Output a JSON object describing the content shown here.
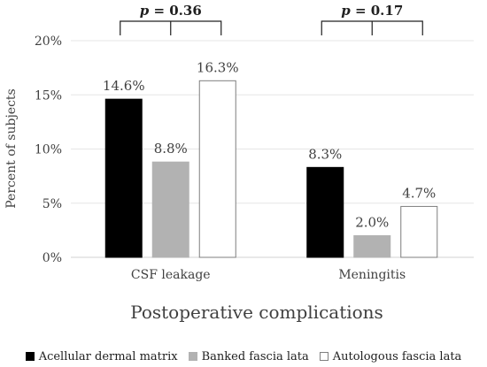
{
  "chart_data": {
    "type": "bar",
    "categories": [
      "CSF leakage",
      "Meningitis"
    ],
    "series": [
      {
        "name": "Acellular dermal matrix",
        "values": [
          14.6,
          8.3
        ],
        "labels": [
          "14.6%",
          "8.3%"
        ],
        "color": "#000000",
        "stroke": "#000000"
      },
      {
        "name": "Banked fascia lata",
        "values": [
          8.8,
          2.0
        ],
        "labels": [
          "8.8%",
          "2.0%"
        ],
        "color": "#b2b2b2",
        "stroke": "#b2b2b2"
      },
      {
        "name": "Autologous fascia lata",
        "values": [
          16.3,
          4.7
        ],
        "labels": [
          "16.3%",
          "4.7%"
        ],
        "color": "#ffffff",
        "stroke": "#7f7f7f"
      }
    ],
    "ylim": [
      0,
      20
    ],
    "yticks": [
      0,
      5,
      10,
      15,
      20
    ],
    "ytick_labels": [
      "0%",
      "5%",
      "10%",
      "15%",
      "20%"
    ],
    "ylabel": "Percent of subjects",
    "xlabel": "Postoperative complications",
    "annotations": [
      {
        "category": "CSF leakage",
        "p_symbol": "p",
        "p_text": " = 0.36"
      },
      {
        "category": "Meningitis",
        "p_symbol": "p",
        "p_text": " = 0.17"
      }
    ],
    "legend_position": "bottom",
    "grid": true
  }
}
